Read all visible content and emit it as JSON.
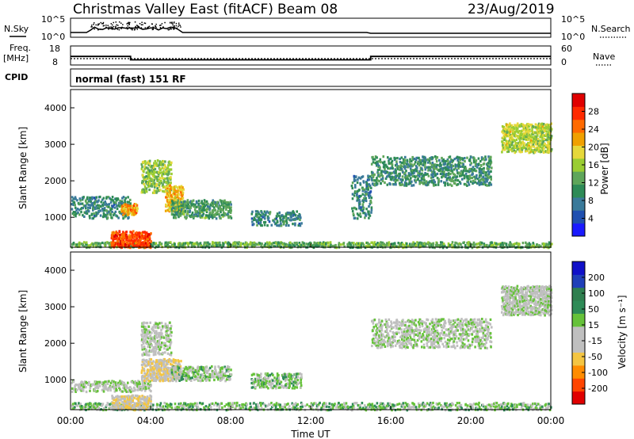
{
  "header": {
    "title": "Christmas Valley East (fitACF)",
    "beam": "Beam 08",
    "date": "23/Aug/2019"
  },
  "left_labels": {
    "nsky": "N.Sky",
    "freq": "Freq.",
    "freq_unit": "[MHz]",
    "cpid": "CPID"
  },
  "right_labels": {
    "nsearch": "N.Search",
    "nave": "Nave"
  },
  "noise_panel": {
    "left_ticks": [
      "10^5",
      "10^0"
    ],
    "right_ticks": [
      "10^5",
      "10^0"
    ]
  },
  "freq_panel": {
    "left_ticks": [
      "18",
      "8"
    ],
    "right_ticks": [
      "60",
      "0"
    ],
    "freq_levels_mhz": [
      {
        "from": "00:00",
        "to": "03:00",
        "value": 12.5
      },
      {
        "from": "03:00",
        "to": "15:00",
        "value": 10.7
      },
      {
        "from": "15:00",
        "to": "24:00",
        "value": 12.5
      }
    ],
    "nave_level": 20
  },
  "cpid_text": "normal (fast) 151 RF",
  "colors": {
    "power": [
      "#1a1aff",
      "#1f4fb0",
      "#3a7a9a",
      "#2e8b57",
      "#5fa65a",
      "#9acd32",
      "#e6d83a",
      "#f0a000",
      "#ff6a00",
      "#ff2a00",
      "#e00000"
    ],
    "velocity": [
      "#e00000",
      "#ff4500",
      "#ff8c00",
      "#f4c542",
      "#bfbfbf",
      "#bfbfbf",
      "#66c23a",
      "#2e8b57",
      "#2f7f4f",
      "#1f3fb8",
      "#1010c8"
    ]
  },
  "panels": {
    "power": {
      "ylabel": "Slant Range [km]",
      "yticks": [
        "1000",
        "2000",
        "3000",
        "4000"
      ],
      "colorbar_label": "Power [dB]",
      "colorbar_ticks": [
        "4",
        "8",
        "12",
        "16",
        "20",
        "24",
        "28"
      ]
    },
    "velocity": {
      "ylabel": "Slant Range [km]",
      "yticks": [
        "1000",
        "2000",
        "3000",
        "4000"
      ],
      "colorbar_label": "Velocity [m s⁻¹]",
      "colorbar_ticks": [
        "-200",
        "-100",
        "-50",
        "-15",
        "15",
        "50",
        "100",
        "200"
      ]
    }
  },
  "xaxis": {
    "label": "Time UT",
    "ticks": [
      "00:00",
      "04:00",
      "08:00",
      "12:00",
      "16:00",
      "20:00",
      "00:00"
    ]
  },
  "chart_data": [
    {
      "type": "heatmap",
      "title": "Christmas Valley East (fitACF)",
      "quantity": "Power [dB]",
      "xlabel": "Time UT",
      "ylabel": "Slant Range [km]",
      "xlim_hours": [
        0,
        24
      ],
      "ylim_km": [
        180,
        4500
      ],
      "clim": [
        0,
        30
      ],
      "blobs": [
        {
          "t0": 0.0,
          "t1": 24.0,
          "r0": 200,
          "r1": 350,
          "value": 12,
          "density": 0.55
        },
        {
          "t0": 2.0,
          "t1": 4.0,
          "r0": 200,
          "r1": 650,
          "value": 26,
          "density": 0.75
        },
        {
          "t0": 0.0,
          "t1": 3.0,
          "r0": 1000,
          "r1": 1600,
          "value": 8,
          "density": 0.4
        },
        {
          "t0": 2.5,
          "t1": 3.3,
          "r0": 1100,
          "r1": 1400,
          "value": 22,
          "density": 0.8
        },
        {
          "t0": 3.5,
          "t1": 5.0,
          "r0": 1700,
          "r1": 2600,
          "value": 14,
          "density": 0.55
        },
        {
          "t0": 4.7,
          "t1": 5.6,
          "r0": 1200,
          "r1": 1900,
          "value": 20,
          "density": 0.7
        },
        {
          "t0": 5.0,
          "t1": 8.0,
          "r0": 1000,
          "r1": 1500,
          "value": 10,
          "density": 0.6
        },
        {
          "t0": 9.0,
          "t1": 11.5,
          "r0": 800,
          "r1": 1200,
          "value": 8,
          "density": 0.4
        },
        {
          "t0": 14.0,
          "t1": 15.0,
          "r0": 1000,
          "r1": 2200,
          "value": 8,
          "density": 0.3
        },
        {
          "t0": 15.0,
          "t1": 21.0,
          "r0": 1900,
          "r1": 2700,
          "value": 9,
          "density": 0.45
        },
        {
          "t0": 21.5,
          "t1": 24.0,
          "r0": 2800,
          "r1": 3600,
          "value": 16,
          "density": 0.7
        }
      ]
    },
    {
      "type": "heatmap",
      "quantity": "Velocity [m s⁻¹]",
      "xlabel": "Time UT",
      "ylabel": "Slant Range [km]",
      "xlim_hours": [
        0,
        24
      ],
      "ylim_km": [
        180,
        4500
      ],
      "clim": [
        -250,
        250
      ],
      "blobs": [
        {
          "t0": 0.0,
          "t1": 24.0,
          "r0": 200,
          "r1": 400,
          "value": 40,
          "density": 0.55
        },
        {
          "t0": 2.0,
          "t1": 4.0,
          "r0": 200,
          "r1": 600,
          "value": -60,
          "density": 0.7
        },
        {
          "t0": 0.0,
          "t1": 4.0,
          "r0": 700,
          "r1": 1000,
          "value": 0,
          "density": 0.5
        },
        {
          "t0": 3.5,
          "t1": 5.5,
          "r0": 1000,
          "r1": 1600,
          "value": -60,
          "density": 0.7
        },
        {
          "t0": 5.0,
          "t1": 8.0,
          "r0": 1000,
          "r1": 1400,
          "value": 30,
          "density": 0.55
        },
        {
          "t0": 9.0,
          "t1": 11.5,
          "r0": 800,
          "r1": 1200,
          "value": 40,
          "density": 0.5
        },
        {
          "t0": 3.5,
          "t1": 5.0,
          "r0": 1700,
          "r1": 2600,
          "value": 0,
          "density": 0.5
        },
        {
          "t0": 15.0,
          "t1": 21.0,
          "r0": 1900,
          "r1": 2700,
          "value": 0,
          "density": 0.45
        },
        {
          "t0": 21.5,
          "t1": 24.0,
          "r0": 2800,
          "r1": 3600,
          "value": 0,
          "density": 0.7
        }
      ]
    }
  ]
}
